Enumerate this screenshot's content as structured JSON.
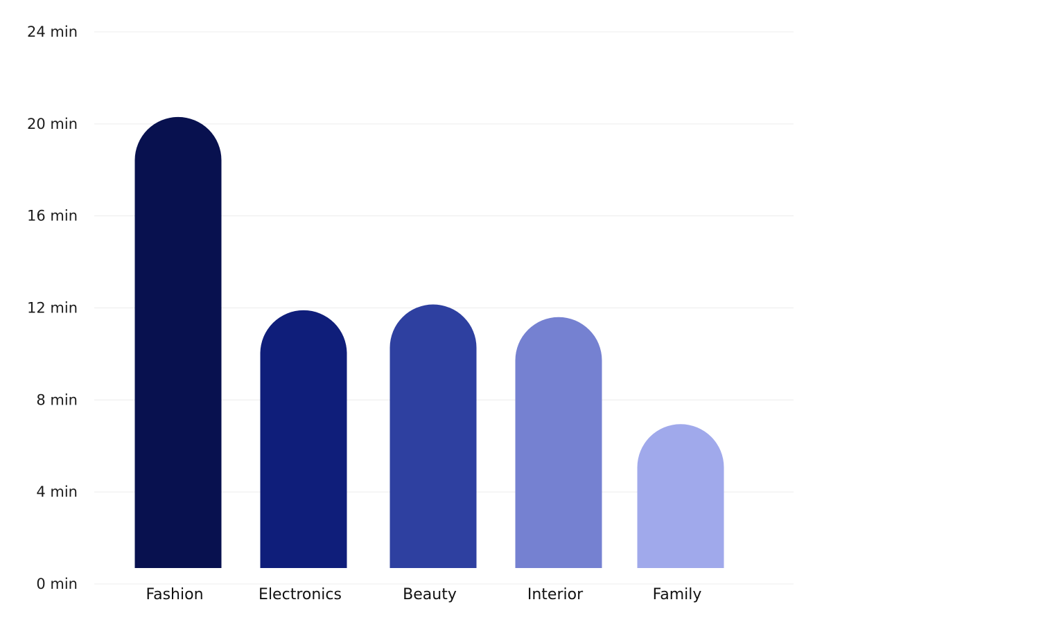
{
  "chart_data": {
    "type": "bar",
    "title": "",
    "xlabel": "",
    "ylabel": "",
    "categories": [
      "Fashion",
      "Electronics",
      "Beauty",
      "Interior",
      "Family"
    ],
    "values": [
      20.3,
      11.9,
      12.15,
      11.6,
      6.95
    ],
    "colors": [
      "#08114f",
      "#0f1e7a",
      "#2e40a0",
      "#7581d1",
      "#a0a9eb"
    ],
    "ylim": [
      0,
      24
    ],
    "yticks": [
      0,
      4,
      8,
      12,
      16,
      20,
      24
    ],
    "ytick_labels": [
      "0 min",
      "4 min",
      "8 min",
      "12 min",
      "16 min",
      "20 min",
      "24 min"
    ],
    "grid": true,
    "legend": "none",
    "bar_style": "rounded-top"
  }
}
